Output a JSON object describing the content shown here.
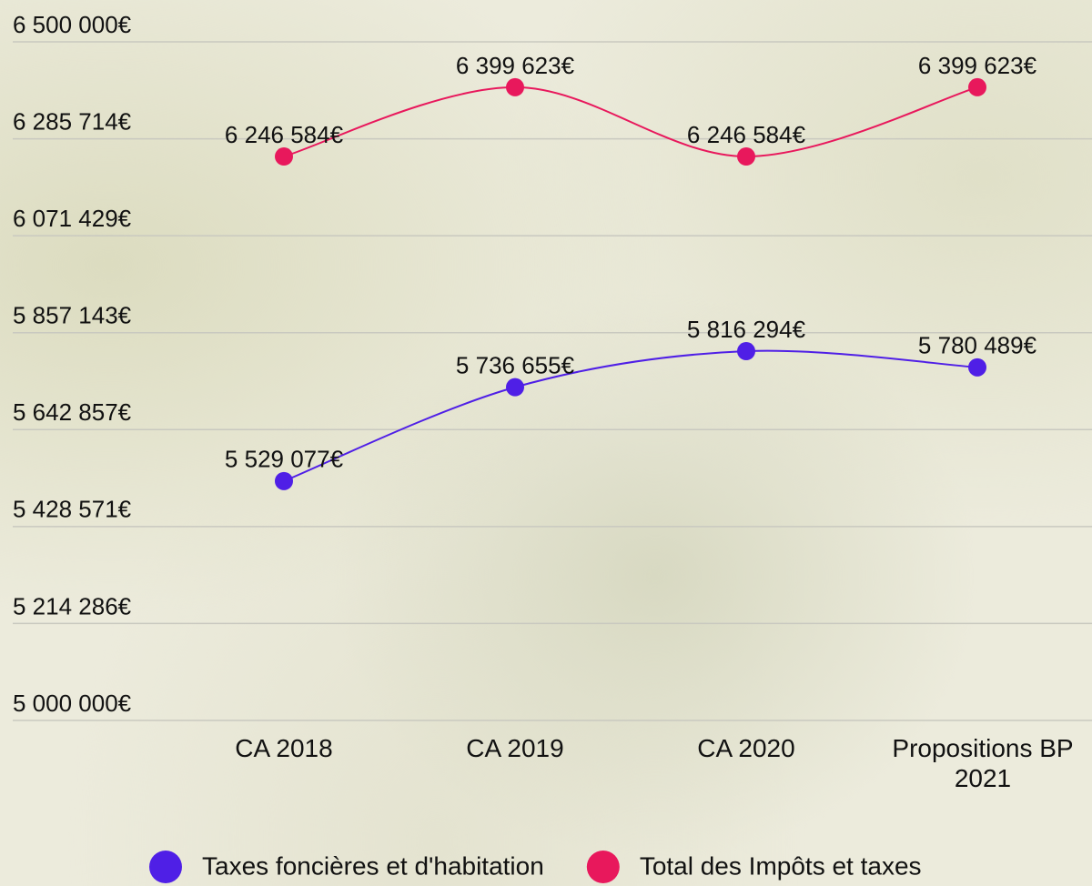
{
  "chart_data": {
    "type": "line",
    "categories": [
      "CA 2018",
      "CA 2019",
      "CA 2020",
      "Propositions BP 2021"
    ],
    "series": [
      {
        "name": "Taxes foncières et d'habitation",
        "color": "#4f1fe6",
        "values": [
          5529077,
          5736655,
          5816294,
          5780489
        ],
        "value_labels": [
          "5 529 077€",
          "5 736 655€",
          "5 816 294€",
          "5 780 489€"
        ]
      },
      {
        "name": "Total des Impôts et taxes",
        "color": "#e8185c",
        "values": [
          6246584,
          6399623,
          6246584,
          6399623
        ],
        "value_labels": [
          "6 246 584€",
          "6 399 623€",
          "6 246 584€",
          "6 399 623€"
        ]
      }
    ],
    "ylim": [
      5000000,
      6500000
    ],
    "yticks": [
      {
        "value": 5000000,
        "label": "5 000 000€"
      },
      {
        "value": 5214286,
        "label": "5 214 286€"
      },
      {
        "value": 5428571,
        "label": "5 428 571€"
      },
      {
        "value": 5642857,
        "label": "5 642 857€"
      },
      {
        "value": 5857143,
        "label": "5 857 143€"
      },
      {
        "value": 6071429,
        "label": "6 071 429€"
      },
      {
        "value": 6285714,
        "label": "6 285 714€"
      },
      {
        "value": 6500000,
        "label": "6 500 000€"
      }
    ],
    "grid": true,
    "legend": "bottom"
  }
}
